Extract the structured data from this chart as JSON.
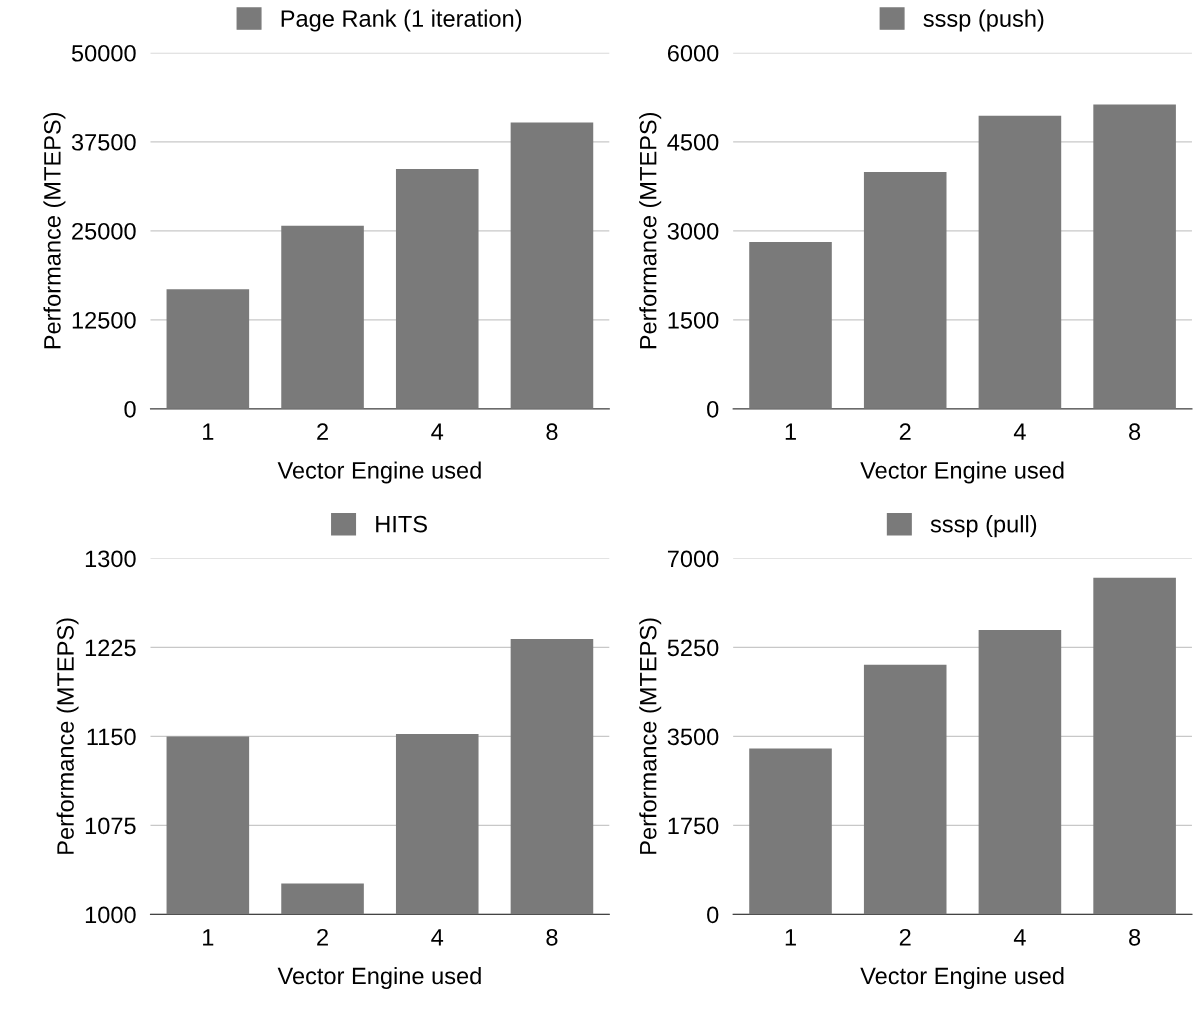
{
  "chart_data": [
    {
      "type": "bar",
      "categories": [
        "1",
        "2",
        "4",
        "8"
      ],
      "xlabel": "Vector Engine used",
      "ylabel": "Performance (MTEPS)",
      "ylim": [
        0,
        50000
      ],
      "yticks": [
        0,
        12500,
        25000,
        37500,
        50000
      ],
      "grid": "y",
      "legend": "top",
      "series": [
        {
          "name": "Page Rank (1 iteration)",
          "color": "#7a7a7a",
          "values": [
            16800,
            25700,
            33700,
            40200
          ]
        }
      ]
    },
    {
      "type": "bar",
      "categories": [
        "1",
        "2",
        "4",
        "8"
      ],
      "xlabel": "Vector Engine used",
      "ylabel": "Performance (MTEPS)",
      "ylim": [
        0,
        6000
      ],
      "yticks": [
        0,
        1500,
        3000,
        4500,
        6000
      ],
      "grid": "y",
      "legend": "top",
      "series": [
        {
          "name": "sssp (push)",
          "color": "#7a7a7a",
          "values": [
            2810,
            3990,
            4940,
            5130
          ]
        }
      ]
    },
    {
      "type": "bar",
      "categories": [
        "1",
        "2",
        "4",
        "8"
      ],
      "xlabel": "Vector Engine used",
      "ylabel": "Performance (MTEPS)",
      "ylim": [
        1000,
        1300
      ],
      "yticks": [
        1000,
        1075,
        1150,
        1225,
        1300
      ],
      "grid": "y",
      "legend": "top",
      "series": [
        {
          "name": "HITS",
          "color": "#7a7a7a",
          "values": [
            1150,
            1026,
            1152,
            1232
          ]
        }
      ]
    },
    {
      "type": "bar",
      "categories": [
        "1",
        "2",
        "4",
        "8"
      ],
      "xlabel": "Vector Engine used",
      "ylabel": "Performance (MTEPS)",
      "ylim": [
        0,
        7000
      ],
      "yticks": [
        0,
        1750,
        3500,
        5250,
        7000
      ],
      "grid": "y",
      "legend": "top",
      "series": [
        {
          "name": "sssp (pull)",
          "color": "#7a7a7a",
          "values": [
            3260,
            4910,
            5590,
            6620
          ]
        }
      ]
    }
  ]
}
